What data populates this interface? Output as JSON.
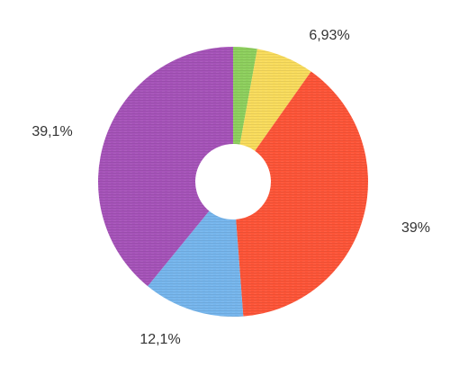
{
  "chart_data": {
    "type": "pie",
    "variant": "donut",
    "slices": [
      {
        "value": 2.87,
        "label": "",
        "color": "#8ed05e"
      },
      {
        "value": 6.93,
        "label": "6,93%",
        "color": "#f9dc5c"
      },
      {
        "value": 39.0,
        "label": "39%",
        "color": "#fe5538"
      },
      {
        "value": 12.1,
        "label": "12,1%",
        "color": "#76b6ed"
      },
      {
        "value": 39.1,
        "label": "39,1%",
        "color": "#a653b9"
      }
    ],
    "start_angle": "top",
    "direction": "clockwise",
    "legend": "none",
    "texture": "horizontal-lines"
  }
}
